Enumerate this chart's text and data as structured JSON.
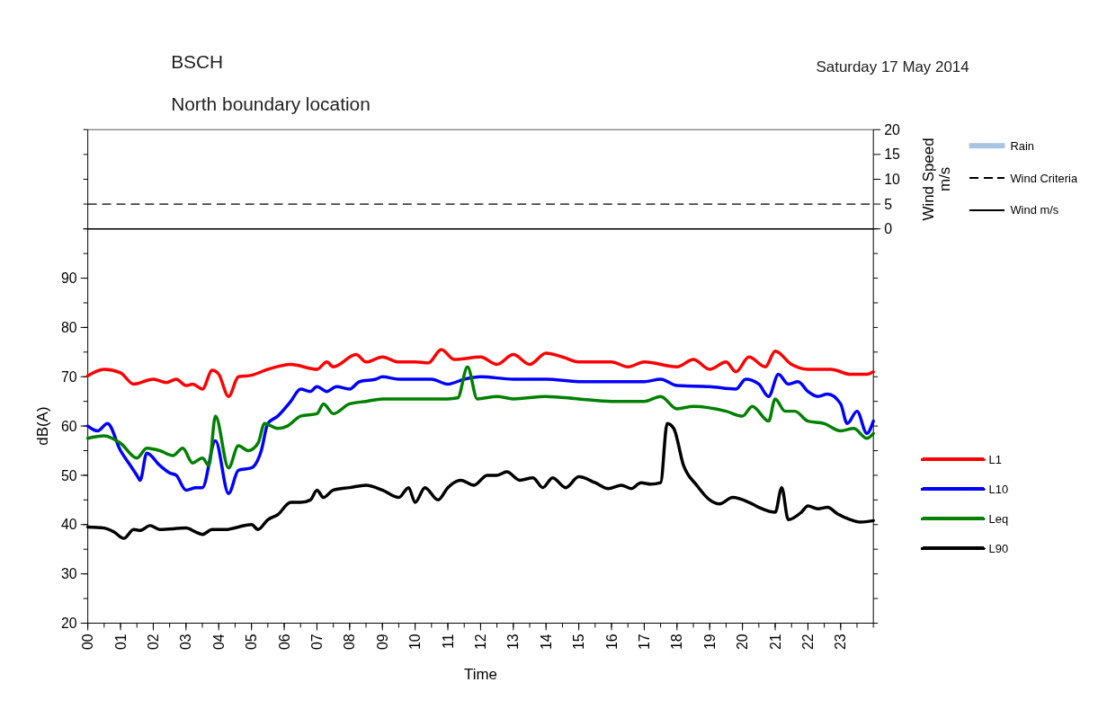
{
  "chart_data": [
    {
      "type": "line",
      "title": "BSCH",
      "subtitle": "North boundary location",
      "annotations": [
        "Saturday 17 May 2014"
      ],
      "ylabel": "Wind Speed\nm/s",
      "xlim": [
        0,
        24
      ],
      "ylim": [
        0,
        20
      ],
      "yticks": [
        0,
        5,
        10,
        15,
        20
      ],
      "tick_labels": "y",
      "grid": false,
      "legend": "right",
      "ref_lines": [
        {
          "axis": "y",
          "value": 5,
          "label": "Wind Criteria",
          "line_style": "dashed",
          "color": "#000000"
        }
      ],
      "series": [
        {
          "name": "Rain",
          "type": "bar",
          "color": "#a9c4e0"
        },
        {
          "name": "Wind m/s",
          "color": "#000000",
          "x": [
            0,
            24
          ],
          "values": [
            0,
            0
          ]
        }
      ]
    },
    {
      "type": "line",
      "xlabel": "Time",
      "ylabel": "dB(A)",
      "xlim": [
        0,
        24
      ],
      "xticks": [
        {
          "value": 0,
          "label": "00"
        },
        {
          "value": 1,
          "label": "01"
        },
        {
          "value": 2,
          "label": "02"
        },
        {
          "value": 3,
          "label": "03"
        },
        {
          "value": 4,
          "label": "04"
        },
        {
          "value": 5,
          "label": "05"
        },
        {
          "value": 6,
          "label": "06"
        },
        {
          "value": 7,
          "label": "07"
        },
        {
          "value": 8,
          "label": "08"
        },
        {
          "value": 9,
          "label": "09"
        },
        {
          "value": 10,
          "label": "10"
        },
        {
          "value": 11,
          "label": "11"
        },
        {
          "value": 12,
          "label": "12"
        },
        {
          "value": 13,
          "label": "13"
        },
        {
          "value": 14,
          "label": "14"
        },
        {
          "value": 15,
          "label": "15"
        },
        {
          "value": 16,
          "label": "16"
        },
        {
          "value": 17,
          "label": "17"
        },
        {
          "value": 18,
          "label": "18"
        },
        {
          "value": 19,
          "label": "19"
        },
        {
          "value": 20,
          "label": "20"
        },
        {
          "value": 21,
          "label": "21"
        },
        {
          "value": 22,
          "label": "22"
        },
        {
          "value": 23,
          "label": "23"
        }
      ],
      "ylim": [
        20,
        100
      ],
      "yticks": [
        20,
        30,
        40,
        50,
        60,
        70,
        80,
        90
      ],
      "grid": false,
      "legend": "right",
      "series": [
        {
          "name": "L1",
          "color": "#ff0000",
          "x": [
            0,
            0.5,
            1.0,
            1.4,
            2.0,
            2.4,
            2.7,
            3.0,
            3.2,
            3.5,
            3.8,
            4.0,
            4.3,
            4.6,
            5.0,
            5.5,
            6.2,
            7.0,
            7.3,
            7.5,
            8.2,
            8.5,
            9.0,
            9.5,
            10.0,
            10.4,
            10.8,
            11.2,
            12.0,
            12.5,
            13.0,
            13.5,
            14.0,
            14.5,
            15.0,
            16.0,
            16.5,
            17.0,
            18.0,
            18.5,
            19.0,
            19.5,
            19.8,
            20.2,
            20.7,
            21.0,
            21.5,
            22.0,
            22.7,
            23.3,
            23.8,
            24.0
          ],
          "values": [
            70.2,
            71.5,
            70.8,
            68.5,
            69.5,
            68.8,
            69.5,
            68.2,
            68.5,
            67.5,
            71.3,
            70.5,
            66,
            70,
            70.3,
            71.5,
            72.5,
            71.5,
            73,
            72,
            74.5,
            73,
            74,
            73,
            73,
            72.8,
            75.5,
            73.5,
            74,
            72.5,
            74.5,
            72.5,
            74.8,
            74,
            73,
            73,
            72,
            73,
            72,
            73.5,
            71.5,
            73,
            71,
            74,
            72,
            75.2,
            72.5,
            71.5,
            71.5,
            70.5,
            70.5,
            71
          ]
        },
        {
          "name": "L10",
          "color": "#0000ff",
          "x": [
            0,
            0.3,
            0.6,
            1.0,
            1.3,
            1.5,
            1.6,
            1.8,
            2.2,
            2.5,
            2.7,
            3.0,
            3.3,
            3.5,
            3.9,
            4.3,
            4.6,
            5.0,
            5.3,
            5.5,
            5.8,
            6.2,
            6.5,
            6.8,
            7.0,
            7.3,
            7.6,
            8.0,
            8.3,
            8.8,
            9.0,
            9.5,
            10.0,
            10.5,
            11.0,
            11.5,
            12.0,
            13.0,
            14.0,
            15.0,
            16.0,
            17.0,
            17.5,
            18.0,
            19.0,
            19.8,
            20.1,
            20.5,
            20.8,
            21.1,
            21.4,
            21.7,
            22.0,
            22.3,
            22.6,
            23.0,
            23.2,
            23.5,
            23.8,
            24.0
          ],
          "values": [
            60,
            59,
            60.5,
            55,
            52,
            50,
            49,
            54.5,
            52,
            50.5,
            50,
            47,
            47.5,
            47.5,
            57,
            46.3,
            51,
            51.5,
            55,
            60.5,
            62,
            65,
            67.5,
            67,
            68,
            67,
            68,
            67.5,
            69,
            69.5,
            70,
            69.5,
            69.5,
            69.5,
            68.5,
            69.5,
            70,
            69.5,
            69.5,
            69,
            69,
            69,
            69.5,
            68.2,
            68,
            67.5,
            69.5,
            68.5,
            66,
            70.5,
            68.5,
            69,
            67,
            66,
            66.5,
            64.5,
            60.5,
            63,
            58.5,
            61
          ]
        },
        {
          "name": "Leq",
          "color": "#008000",
          "x": [
            0,
            0.5,
            1.0,
            1.5,
            1.8,
            2.2,
            2.6,
            2.9,
            3.2,
            3.5,
            3.7,
            3.9,
            4.3,
            4.6,
            4.9,
            5.2,
            5.4,
            5.8,
            6.1,
            6.5,
            7.0,
            7.2,
            7.5,
            8.0,
            8.5,
            9.0,
            10.0,
            11.0,
            11.3,
            11.6,
            11.9,
            12.5,
            13.0,
            14.0,
            15.0,
            16.0,
            17.0,
            17.5,
            18.0,
            18.5,
            19.5,
            20.0,
            20.3,
            20.8,
            21.0,
            21.3,
            21.6,
            22.0,
            22.5,
            23.0,
            23.4,
            23.8,
            24.0
          ],
          "values": [
            57.5,
            58,
            56.5,
            53.5,
            55.5,
            55,
            54,
            55.5,
            52.5,
            53.5,
            52,
            62,
            51.5,
            56,
            55,
            56.5,
            60.5,
            59.5,
            60,
            62,
            62.5,
            64.5,
            62.5,
            64.5,
            65,
            65.5,
            65.5,
            65.5,
            65.7,
            72,
            65.5,
            66,
            65.5,
            66,
            65.5,
            65,
            65,
            66,
            63.5,
            64,
            63,
            62,
            64,
            61,
            65.5,
            63,
            63,
            61,
            60.5,
            59,
            59.5,
            57.5,
            58.5
          ]
        },
        {
          "name": "L90",
          "color": "#000000",
          "x": [
            0,
            0.5,
            0.8,
            1.1,
            1.4,
            1.6,
            1.9,
            2.2,
            3.0,
            3.3,
            3.5,
            3.8,
            4.2,
            5.0,
            5.2,
            5.5,
            5.8,
            6.2,
            6.5,
            6.8,
            7.0,
            7.2,
            7.5,
            8.0,
            8.5,
            9.0,
            9.5,
            9.8,
            10.0,
            10.3,
            10.7,
            11.0,
            11.4,
            11.8,
            12.2,
            12.5,
            12.8,
            13.2,
            13.6,
            13.9,
            14.2,
            14.6,
            15.0,
            15.5,
            15.9,
            16.3,
            16.6,
            16.9,
            17.2,
            17.5,
            17.7,
            17.9,
            18.2,
            18.6,
            19.0,
            19.3,
            19.7,
            20.2,
            20.5,
            21.0,
            21.2,
            21.4,
            21.8,
            22.0,
            22.3,
            22.6,
            22.9,
            23.3,
            23.6,
            24.0
          ],
          "values": [
            39.5,
            39.3,
            38.5,
            37.2,
            39,
            38.8,
            39.8,
            39,
            39.3,
            38.5,
            38,
            39,
            39,
            40,
            39,
            41,
            42,
            44.5,
            44.5,
            45,
            47,
            45.5,
            47,
            47.5,
            48,
            47,
            45.5,
            47.5,
            44.5,
            47.5,
            45,
            47.5,
            49,
            48,
            50,
            50,
            50.7,
            49,
            49.5,
            47.5,
            49.5,
            47.5,
            49.7,
            48.5,
            47.3,
            48,
            47.3,
            48.5,
            48.2,
            48.5,
            60.5,
            59.5,
            52,
            48,
            45,
            44.2,
            45.5,
            44.5,
            43.5,
            42.5,
            47.5,
            41,
            42.5,
            43.8,
            43.2,
            43.5,
            42.2,
            41,
            40.5,
            40.8
          ]
        }
      ]
    }
  ]
}
